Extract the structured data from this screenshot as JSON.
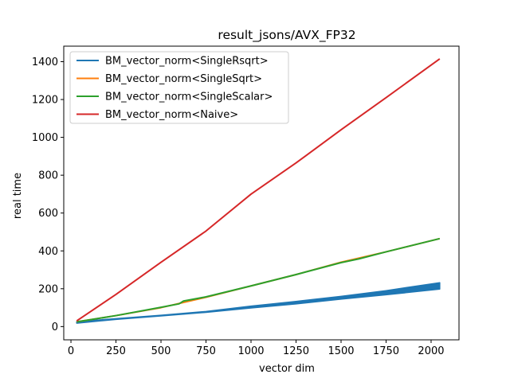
{
  "chart_data": {
    "type": "line",
    "title": "result_jsons/AVX_FP32",
    "xlabel": "vector dim",
    "ylabel": "real time",
    "xlim": [
      -40,
      2155
    ],
    "ylim": [
      -70,
      1482
    ],
    "x_ticks": [
      0,
      250,
      500,
      750,
      1000,
      1250,
      1500,
      1750,
      2000
    ],
    "y_ticks": [
      0,
      200,
      400,
      600,
      800,
      1000,
      1200,
      1400
    ],
    "grid": false,
    "legend_position": "top-left",
    "series": [
      {
        "name": "BM_vector_norm<SingleRsqrt>",
        "color": "#1f77b4",
        "band": true,
        "x": [
          32,
          250,
          500,
          750,
          1000,
          1250,
          1500,
          1750,
          2048
        ],
        "y_low": [
          18,
          38,
          56,
          75,
          98,
          120,
          145,
          168,
          198
        ],
        "y_high": [
          26,
          42,
          60,
          80,
          108,
          133,
          160,
          190,
          232
        ]
      },
      {
        "name": "BM_vector_norm<SingleSqrt>",
        "color": "#ff7f0e",
        "x": [
          32,
          250,
          500,
          750,
          1000,
          1250,
          1500,
          1750,
          2048
        ],
        "y": [
          25,
          58,
          100,
          155,
          215,
          275,
          340,
          395,
          465
        ]
      },
      {
        "name": "BM_vector_norm<SingleScalar>",
        "color": "#2ca02c",
        "x": [
          32,
          100,
          250,
          500,
          600,
          625,
          750,
          1000,
          1250,
          1500,
          1600,
          1750,
          2048
        ],
        "y": [
          25,
          35,
          58,
          102,
          120,
          135,
          157,
          215,
          275,
          338,
          358,
          395,
          465
        ]
      },
      {
        "name": "BM_vector_norm<Naive>",
        "color": "#d62728",
        "x": [
          32,
          250,
          500,
          750,
          1000,
          1250,
          1500,
          1750,
          2048
        ],
        "y": [
          30,
          170,
          340,
          505,
          700,
          865,
          1040,
          1210,
          1415
        ]
      }
    ]
  }
}
